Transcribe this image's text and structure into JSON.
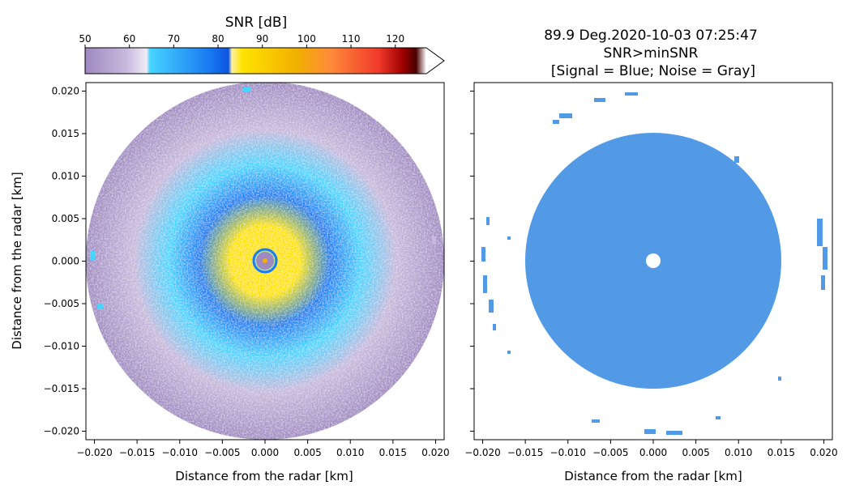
{
  "colors": {
    "snr_colormap_stops": [
      "#9f89c1",
      "#c7b8dc",
      "#f0ecf7",
      "#47d4ff",
      "#1a7cf2",
      "#0d55e0",
      "#fff2a6",
      "#ffe300",
      "#f2b000",
      "#ff8a3a",
      "#f03a2a",
      "#a00000",
      "#4a0000",
      "#ffffff"
    ],
    "signal_blue": "#5299e6",
    "frame": "#000000"
  },
  "colorbar": {
    "label": "SNR [dB]",
    "ticks": [
      "50",
      "60",
      "70",
      "80",
      "90",
      "100",
      "110",
      "120"
    ],
    "range": [
      50,
      127
    ],
    "extend": "max"
  },
  "left_panel": {
    "xlabel": "Distance from the radar [km]",
    "ylabel": "Distance from the radar [km]",
    "x_ticks": [
      "−0.020",
      "−0.015",
      "−0.010",
      "−0.005",
      "0.000",
      "0.005",
      "0.010",
      "0.015",
      "0.020"
    ],
    "y_ticks": [
      "0.020",
      "0.015",
      "0.010",
      "0.005",
      "0.000",
      "−0.005",
      "−0.010",
      "−0.015",
      "−0.020"
    ]
  },
  "right_panel": {
    "title_line1": "89.9 Deg.2020-10-03 07:25:47",
    "title_line2": "SNR>minSNR",
    "title_line3": "[Signal = Blue; Noise = Gray]",
    "xlabel": "Distance from the radar [km]",
    "x_ticks": [
      "−0.020",
      "−0.015",
      "−0.010",
      "−0.005",
      "0.000",
      "0.005",
      "0.010",
      "0.015",
      "0.020"
    ]
  },
  "chart_data": [
    {
      "type": "heatmap",
      "title": "",
      "colorbar_label": "SNR [dB]",
      "colorbar_range": [
        50,
        127
      ],
      "xlabel": "Distance from the radar [km]",
      "ylabel": "Distance from the radar [km]",
      "xlim": [
        -0.021,
        0.021
      ],
      "ylim": [
        -0.021,
        0.021
      ],
      "grid": false,
      "radial_profile": {
        "radius_km": [
          0.0007,
          0.0015,
          0.004,
          0.0075,
          0.011,
          0.015,
          0.0205
        ],
        "snr_db": [
          72,
          90,
          88,
          80,
          73,
          62,
          55
        ]
      }
    },
    {
      "type": "heatmap",
      "title": "89.9 Deg.2020-10-03 07:25:47 SNR>minSNR [Signal = Blue; Noise = Gray]",
      "xlabel": "Distance from the radar [km]",
      "xlim": [
        -0.021,
        0.021
      ],
      "ylim": [
        -0.021,
        0.021
      ],
      "grid": false,
      "signal_region": {
        "outer_radius_km": 0.015,
        "inner_hole_radius_km": 0.0013
      }
    }
  ]
}
